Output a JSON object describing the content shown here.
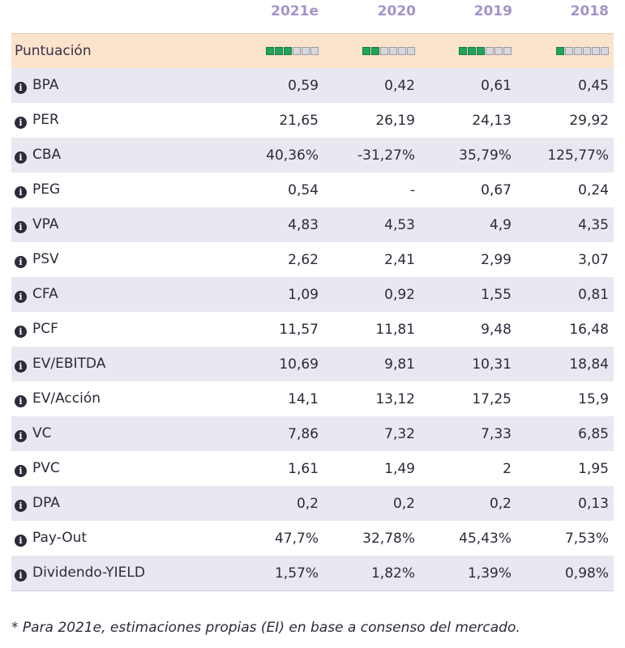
{
  "columns": [
    "2021e",
    "2020",
    "2019",
    "2018"
  ],
  "score": {
    "label": "Puntuación",
    "values": [
      3,
      2,
      3,
      1
    ],
    "max": 6,
    "colors": {
      "on": "#22a45a",
      "off": "#d7d7df"
    }
  },
  "rows": [
    {
      "label": "BPA",
      "values": [
        "0,59",
        "0,42",
        "0,61",
        "0,45"
      ]
    },
    {
      "label": "PER",
      "values": [
        "21,65",
        "26,19",
        "24,13",
        "29,92"
      ]
    },
    {
      "label": "CBA",
      "values": [
        "40,36%",
        "-31,27%",
        "35,79%",
        "125,77%"
      ]
    },
    {
      "label": "PEG",
      "values": [
        "0,54",
        "-",
        "0,67",
        "0,24"
      ]
    },
    {
      "label": "VPA",
      "values": [
        "4,83",
        "4,53",
        "4,9",
        "4,35"
      ]
    },
    {
      "label": "PSV",
      "values": [
        "2,62",
        "2,41",
        "2,99",
        "3,07"
      ]
    },
    {
      "label": "CFA",
      "values": [
        "1,09",
        "0,92",
        "1,55",
        "0,81"
      ]
    },
    {
      "label": "PCF",
      "values": [
        "11,57",
        "11,81",
        "9,48",
        "16,48"
      ]
    },
    {
      "label": "EV/EBITDA",
      "values": [
        "10,69",
        "9,81",
        "10,31",
        "18,84"
      ]
    },
    {
      "label": "EV/Acción",
      "values": [
        "14,1",
        "13,12",
        "17,25",
        "15,9"
      ]
    },
    {
      "label": "VC",
      "values": [
        "7,86",
        "7,32",
        "7,33",
        "6,85"
      ]
    },
    {
      "label": "PVC",
      "values": [
        "1,61",
        "1,49",
        "2",
        "1,95"
      ]
    },
    {
      "label": "DPA",
      "values": [
        "0,2",
        "0,2",
        "0,2",
        "0,13"
      ]
    },
    {
      "label": "Pay-Out",
      "values": [
        "47,7%",
        "32,78%",
        "45,43%",
        "7,53%"
      ]
    },
    {
      "label": "Dividendo-YIELD",
      "values": [
        "1,57%",
        "1,82%",
        "1,39%",
        "0,98%"
      ]
    }
  ],
  "footnote": "* Para 2021e, estimaciones propias (EI) en base a consenso del mercado.",
  "theme": {
    "header_color": "#a494c8",
    "zebra": "#e9e8f1",
    "score_row_bg": "#fbe3cc"
  }
}
